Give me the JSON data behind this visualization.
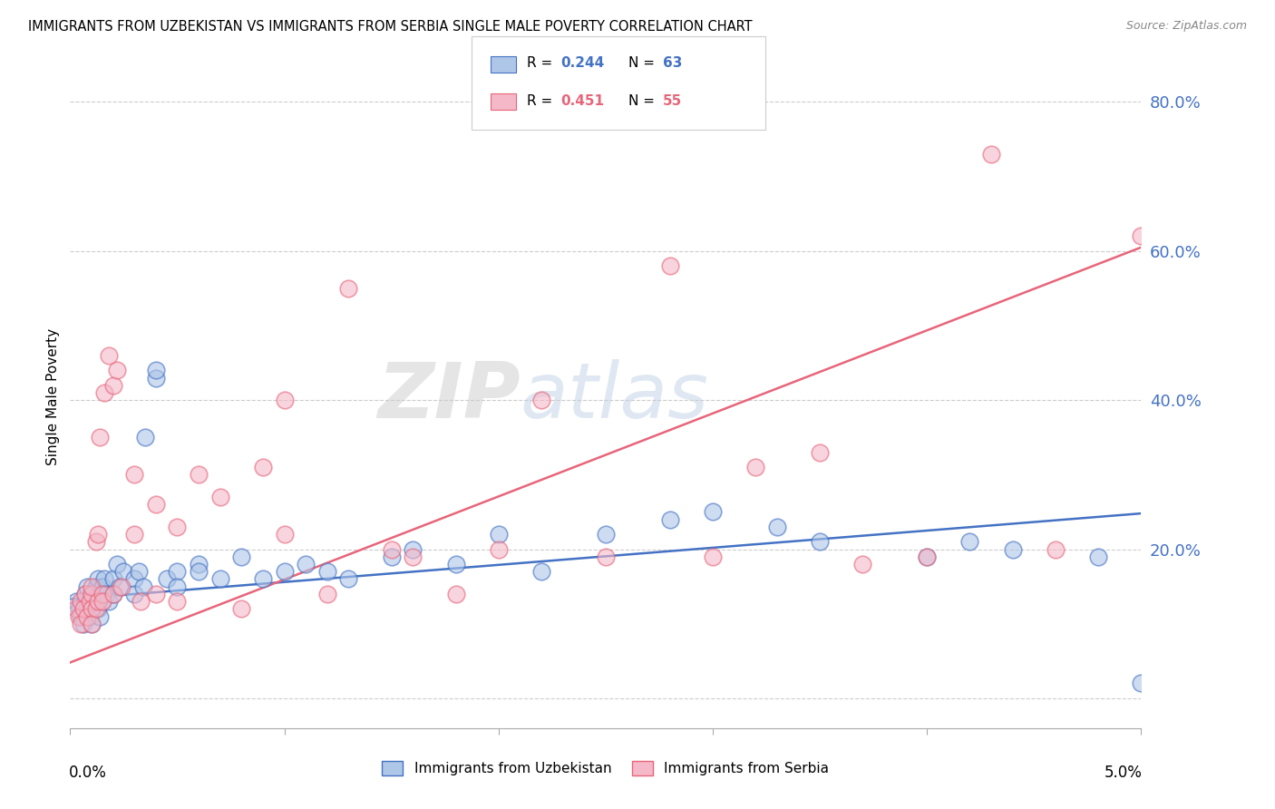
{
  "title": "IMMIGRANTS FROM UZBEKISTAN VS IMMIGRANTS FROM SERBIA SINGLE MALE POVERTY CORRELATION CHART",
  "source": "Source: ZipAtlas.com",
  "ylabel": "Single Male Poverty",
  "y_ticks": [
    0.0,
    0.2,
    0.4,
    0.6,
    0.8
  ],
  "y_tick_labels": [
    "",
    "20.0%",
    "40.0%",
    "60.0%",
    "80.0%"
  ],
  "x_range": [
    0.0,
    0.05
  ],
  "y_range": [
    -0.04,
    0.85
  ],
  "uzbekistan_color": "#aec6e8",
  "serbia_color": "#f4b8c8",
  "uzbekistan_edge_color": "#4472c4",
  "serbia_edge_color": "#e8657a",
  "uzbekistan_line_color": "#4472c4",
  "serbia_line_color": "#e8657a",
  "legend_R_uzbekistan": "0.244",
  "legend_N_uzbekistan": "63",
  "legend_R_serbia": "0.451",
  "legend_N_serbia": "55",
  "watermark": "ZIPatlas",
  "uzbekistan_x": [
    0.0003,
    0.0004,
    0.0005,
    0.0006,
    0.0007,
    0.0007,
    0.0008,
    0.0008,
    0.0009,
    0.001,
    0.001,
    0.001,
    0.001,
    0.0012,
    0.0012,
    0.0013,
    0.0013,
    0.0014,
    0.0014,
    0.0015,
    0.0015,
    0.0016,
    0.0017,
    0.0018,
    0.002,
    0.002,
    0.0022,
    0.0023,
    0.0025,
    0.003,
    0.003,
    0.0032,
    0.0034,
    0.0035,
    0.004,
    0.004,
    0.0045,
    0.005,
    0.005,
    0.006,
    0.006,
    0.007,
    0.008,
    0.009,
    0.01,
    0.011,
    0.012,
    0.013,
    0.015,
    0.016,
    0.018,
    0.02,
    0.022,
    0.025,
    0.028,
    0.03,
    0.033,
    0.035,
    0.04,
    0.042,
    0.044,
    0.048,
    0.05
  ],
  "uzbekistan_y": [
    0.13,
    0.12,
    0.11,
    0.1,
    0.13,
    0.14,
    0.12,
    0.15,
    0.11,
    0.14,
    0.13,
    0.12,
    0.1,
    0.15,
    0.13,
    0.16,
    0.12,
    0.14,
    0.11,
    0.15,
    0.13,
    0.16,
    0.14,
    0.13,
    0.16,
    0.14,
    0.18,
    0.15,
    0.17,
    0.16,
    0.14,
    0.17,
    0.15,
    0.35,
    0.43,
    0.44,
    0.16,
    0.17,
    0.15,
    0.18,
    0.17,
    0.16,
    0.19,
    0.16,
    0.17,
    0.18,
    0.17,
    0.16,
    0.19,
    0.2,
    0.18,
    0.22,
    0.17,
    0.22,
    0.24,
    0.25,
    0.23,
    0.21,
    0.19,
    0.21,
    0.2,
    0.19,
    0.02
  ],
  "serbia_x": [
    0.0003,
    0.0004,
    0.0005,
    0.0005,
    0.0006,
    0.0007,
    0.0008,
    0.0009,
    0.001,
    0.001,
    0.001,
    0.001,
    0.0012,
    0.0012,
    0.0013,
    0.0013,
    0.0014,
    0.0015,
    0.0015,
    0.0016,
    0.0018,
    0.002,
    0.002,
    0.0022,
    0.0024,
    0.003,
    0.003,
    0.0033,
    0.004,
    0.004,
    0.005,
    0.005,
    0.006,
    0.007,
    0.008,
    0.009,
    0.01,
    0.01,
    0.012,
    0.013,
    0.015,
    0.016,
    0.018,
    0.02,
    0.022,
    0.025,
    0.028,
    0.03,
    0.032,
    0.035,
    0.037,
    0.04,
    0.043,
    0.046,
    0.05
  ],
  "serbia_y": [
    0.12,
    0.11,
    0.13,
    0.1,
    0.12,
    0.14,
    0.11,
    0.13,
    0.14,
    0.12,
    0.1,
    0.15,
    0.12,
    0.21,
    0.22,
    0.13,
    0.35,
    0.14,
    0.13,
    0.41,
    0.46,
    0.14,
    0.42,
    0.44,
    0.15,
    0.3,
    0.22,
    0.13,
    0.26,
    0.14,
    0.23,
    0.13,
    0.3,
    0.27,
    0.12,
    0.31,
    0.4,
    0.22,
    0.14,
    0.55,
    0.2,
    0.19,
    0.14,
    0.2,
    0.4,
    0.19,
    0.58,
    0.19,
    0.31,
    0.33,
    0.18,
    0.19,
    0.73,
    0.2,
    0.62
  ],
  "blue_line_x": [
    0.0,
    0.05
  ],
  "blue_line_y": [
    0.133,
    0.248
  ],
  "pink_line_x": [
    0.0,
    0.05
  ],
  "pink_line_y": [
    0.048,
    0.605
  ]
}
